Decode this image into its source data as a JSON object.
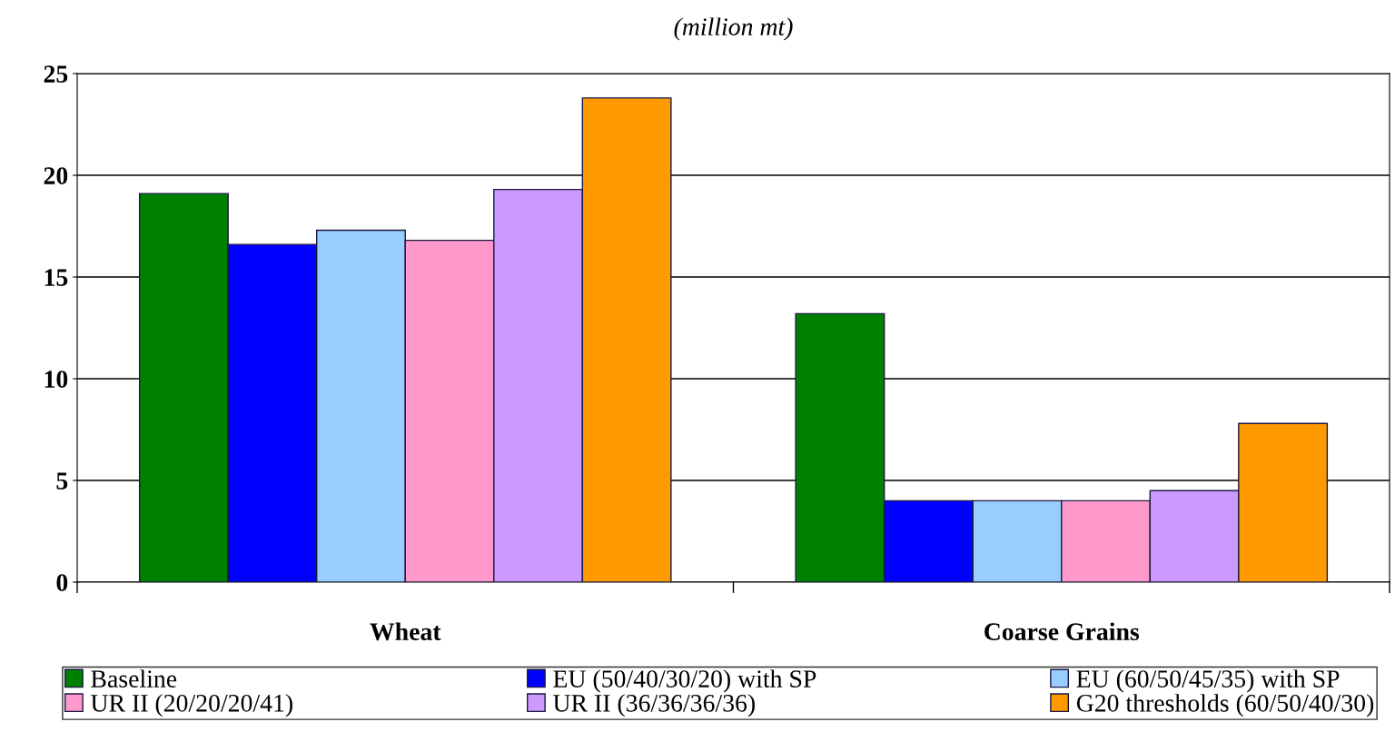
{
  "chart_data": {
    "type": "bar",
    "title": "(million mt)",
    "categories": [
      "Wheat",
      "Coarse Grains"
    ],
    "series": [
      {
        "name": "Baseline",
        "color": "#008000",
        "values": [
          19.1,
          13.2
        ]
      },
      {
        "name": "EU (50/40/30/20) with SP",
        "color": "#0000ff",
        "values": [
          16.6,
          4.0
        ]
      },
      {
        "name": "EU (60/50/45/35) with SP",
        "color": "#99ccff",
        "values": [
          17.3,
          4.0
        ]
      },
      {
        "name": "UR II (20/20/20/41)",
        "color": "#ff99cc",
        "values": [
          16.8,
          4.0
        ]
      },
      {
        "name": "UR II (36/36/36/36)",
        "color": "#cc99ff",
        "values": [
          19.3,
          4.5
        ]
      },
      {
        "name": "G20 thresholds (60/50/40/30)",
        "color": "#ff9900",
        "values": [
          23.8,
          7.8
        ]
      }
    ],
    "ylim": [
      0,
      25
    ],
    "yticks": [
      0,
      5,
      10,
      15,
      20,
      25
    ],
    "grid": "y",
    "legend": "bottom"
  }
}
